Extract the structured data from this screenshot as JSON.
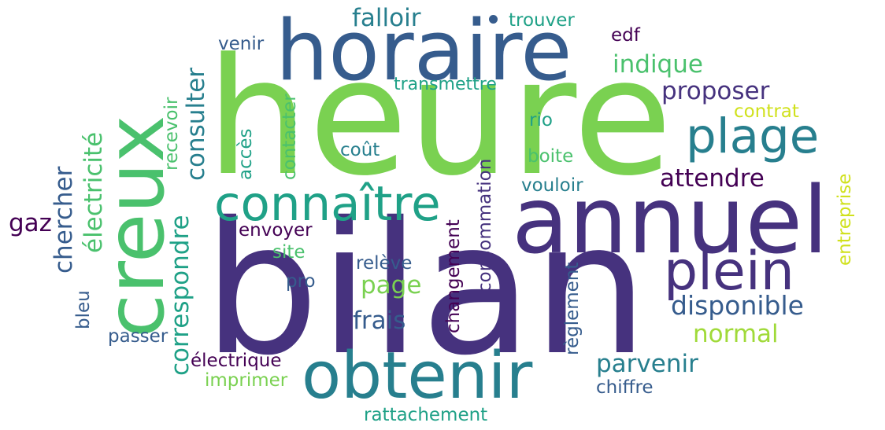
{
  "words": {
    "bilan": "bilan",
    "heure": "heure",
    "horaire": "horaire",
    "annuel": "annuel",
    "creux": "creux",
    "obtenir": "obtenir",
    "plein": "plein",
    "connaitre": "connaître",
    "plage": "plage",
    "disponible": "disponible",
    "attendre": "attendre",
    "proposer": "proposer",
    "indique": "indique",
    "falloir": "falloir",
    "parvenir": "parvenir",
    "normal": "normal",
    "frais": "frais",
    "page": "page",
    "consulter": "consulter",
    "chercher": "chercher",
    "electricite": "électricité",
    "correspondre": "correspondre",
    "trouver": "trouver",
    "edf": "edf",
    "venir": "venir",
    "transmettre": "transmettre",
    "contrat": "contrat",
    "rio": "rio",
    "boite": "boite",
    "vouloir": "vouloir",
    "cout": "coût",
    "recevoir": "recevoir",
    "acces": "accès",
    "contacter": "contacter",
    "gaz": "gaz",
    "envoyer": "envoyer",
    "site": "site",
    "pro": "pro",
    "releve": "relève",
    "changement": "changement",
    "consommation": "consommation",
    "reglement": "règlement",
    "chiffre": "chiffre",
    "entreprise": "entreprise",
    "bleu": "bleu",
    "passer": "passer",
    "electrique": "électrique",
    "imprimer": "imprimer",
    "rattachement": "rattachement"
  },
  "palette": {
    "dark_purple": "#440154",
    "indigo": "#46327e",
    "blue": "#365c8d",
    "teal": "#277f8e",
    "green_teal": "#1fa187",
    "green": "#4ac16d",
    "light_green": "#7ad151",
    "yellow_green": "#a0da39",
    "yellow": "#d0e11c"
  }
}
